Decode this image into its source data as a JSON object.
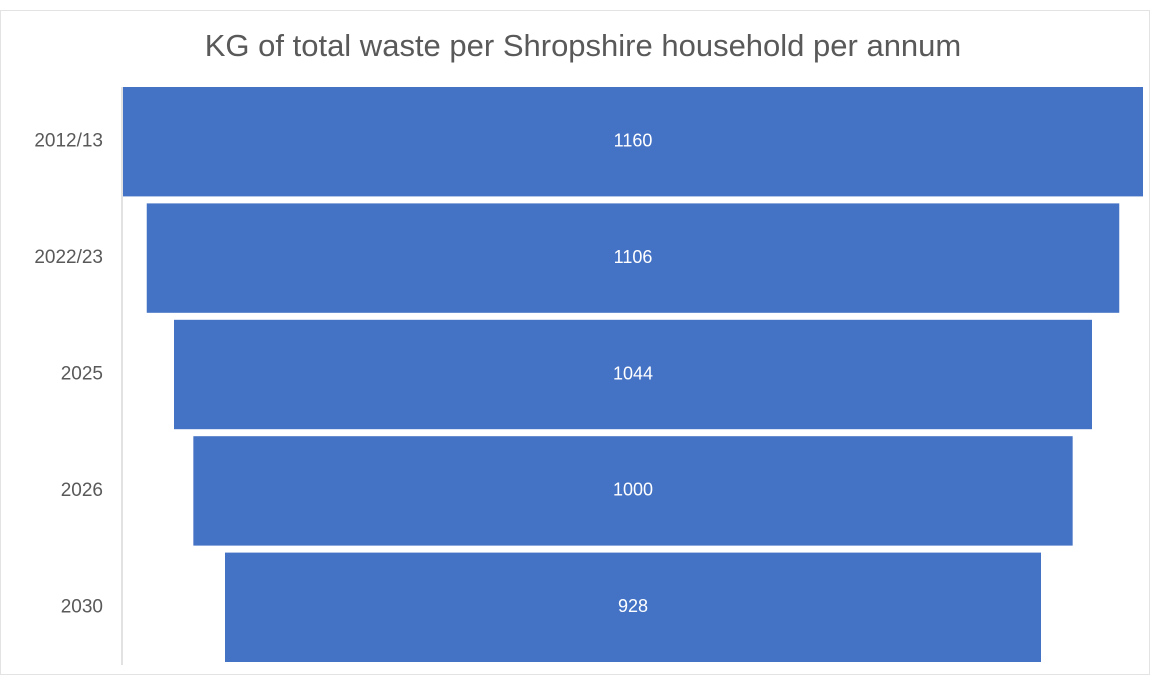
{
  "chart_data": {
    "type": "funnel",
    "title": "KG of total waste per Shropshire household per annum",
    "categories": [
      "2012/13",
      "2022/23",
      "2025",
      "2026",
      "2030"
    ],
    "values": [
      1160,
      1106,
      1044,
      1000,
      928
    ],
    "color": "#4472c4"
  }
}
